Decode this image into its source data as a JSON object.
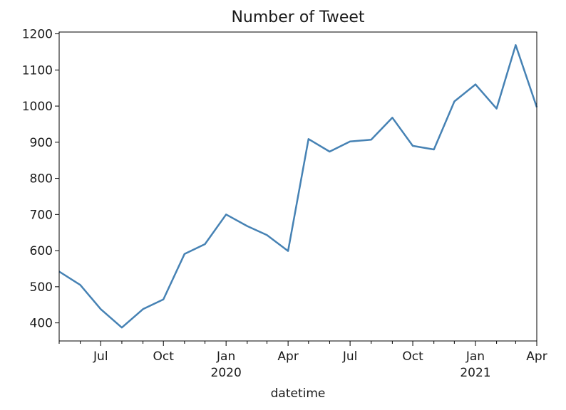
{
  "chart_data": {
    "type": "line",
    "title": "Number of Tweet",
    "xlabel": "datetime",
    "ylabel": "",
    "x": [
      "2019-04-30",
      "2019-05-31",
      "2019-06-30",
      "2019-07-31",
      "2019-08-31",
      "2019-09-30",
      "2019-10-31",
      "2019-11-30",
      "2019-12-31",
      "2020-01-31",
      "2020-02-29",
      "2020-03-31",
      "2020-04-30",
      "2020-05-31",
      "2020-06-30",
      "2020-07-31",
      "2020-08-31",
      "2020-09-30",
      "2020-10-31",
      "2020-11-30",
      "2020-12-31",
      "2021-01-31",
      "2021-02-28",
      "2021-03-31"
    ],
    "series": [
      {
        "values": [
          542,
          505,
          438,
          387,
          438,
          465,
          591,
          618,
          700,
          668,
          643,
          599,
          909,
          874,
          902,
          907,
          968,
          890,
          880,
          1013,
          1060,
          993,
          1169,
          997
        ],
        "color": "#4682b4"
      }
    ],
    "xlim": [
      "2019-04-30",
      "2021-03-31"
    ],
    "ylim": [
      350,
      1205
    ],
    "y_ticks": [
      400,
      500,
      600,
      700,
      800,
      900,
      1000,
      1100,
      1200
    ],
    "x_ticks": [
      {
        "date": "2019-06-30",
        "label": "Jul",
        "sub": ""
      },
      {
        "date": "2019-09-30",
        "label": "Oct",
        "sub": ""
      },
      {
        "date": "2019-12-31",
        "label": "Jan",
        "sub": "2020"
      },
      {
        "date": "2020-03-31",
        "label": "Apr",
        "sub": ""
      },
      {
        "date": "2020-06-30",
        "label": "Jul",
        "sub": ""
      },
      {
        "date": "2020-09-30",
        "label": "Oct",
        "sub": ""
      },
      {
        "date": "2020-12-31",
        "label": "Jan",
        "sub": "2021"
      },
      {
        "date": "2021-03-31",
        "label": "Apr",
        "sub": ""
      }
    ],
    "grid": false,
    "legend": "none"
  }
}
